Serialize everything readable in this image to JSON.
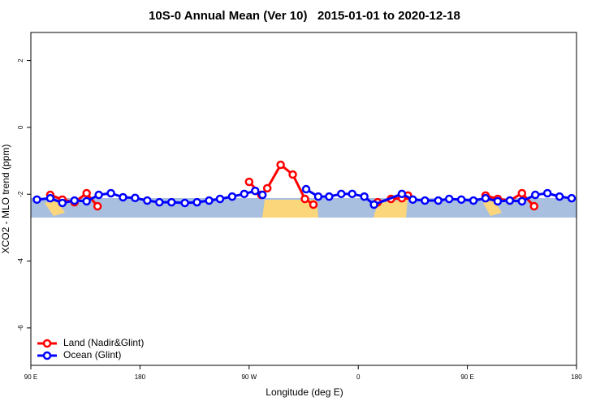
{
  "chart_data": {
    "type": "line",
    "title": "10S-0 Annual Mean (Ver 10)   2015-01-01 to 2020-12-18",
    "x_label": "Longitude (deg E)",
    "y_label": "XCO2 - MLO trend (ppm)",
    "xlim": [
      90,
      540
    ],
    "ylim": [
      -7.12,
      2.84
    ],
    "xticks": [
      {
        "value": 90,
        "label": "90 E"
      },
      {
        "value": 180,
        "label": "180"
      },
      {
        "value": 270,
        "label": "90 W"
      },
      {
        "value": 360,
        "label": "0"
      },
      {
        "value": 450,
        "label": "90 E"
      },
      {
        "value": 540,
        "label": "180"
      }
    ],
    "yticks": [
      -6,
      -4,
      -2,
      0,
      2
    ],
    "legend": "bottom-left",
    "series": [
      {
        "name": "Land (Nadir&Glint)",
        "color": "#ff0000",
        "x": [
          106,
          116,
          126,
          136,
          145,
          null,
          270,
          280,
          285,
          296,
          306,
          316,
          323,
          null,
          376,
          387,
          396,
          401,
          null,
          465,
          475,
          485,
          495,
          505
        ],
        "values": [
          -2.02,
          -2.16,
          -2.24,
          -1.97,
          -2.36,
          null,
          -1.63,
          -2.02,
          -1.82,
          -1.12,
          -1.41,
          -2.14,
          -2.31,
          null,
          -2.24,
          -2.14,
          -2.12,
          -2.04,
          null,
          -2.04,
          -2.14,
          -2.19,
          -1.97,
          -2.36
        ]
      },
      {
        "name": "Ocean (Glint)",
        "color": "#0000ff",
        "x": [
          95,
          106,
          116,
          126,
          136,
          146,
          156,
          166,
          176,
          186,
          196,
          206,
          217,
          227,
          237,
          246,
          256,
          266,
          275,
          281,
          null,
          317,
          327,
          336,
          346,
          355,
          365,
          373,
          396,
          405,
          415,
          426,
          435,
          445,
          455,
          465,
          475,
          485,
          495,
          506,
          516,
          526,
          536
        ],
        "values": [
          -2.16,
          -2.12,
          -2.26,
          -2.19,
          -2.21,
          -2.02,
          -1.97,
          -2.09,
          -2.11,
          -2.19,
          -2.24,
          -2.24,
          -2.26,
          -2.24,
          -2.19,
          -2.14,
          -2.07,
          -1.99,
          -1.9,
          -2.02,
          null,
          -1.85,
          -2.07,
          -2.07,
          -1.99,
          -1.99,
          -2.07,
          -2.31,
          -1.99,
          -2.16,
          -2.19,
          -2.19,
          -2.14,
          -2.16,
          -2.19,
          -2.12,
          -2.21,
          -2.19,
          -2.21,
          -2.02,
          -1.97,
          -2.07,
          -2.12
        ]
      }
    ]
  }
}
